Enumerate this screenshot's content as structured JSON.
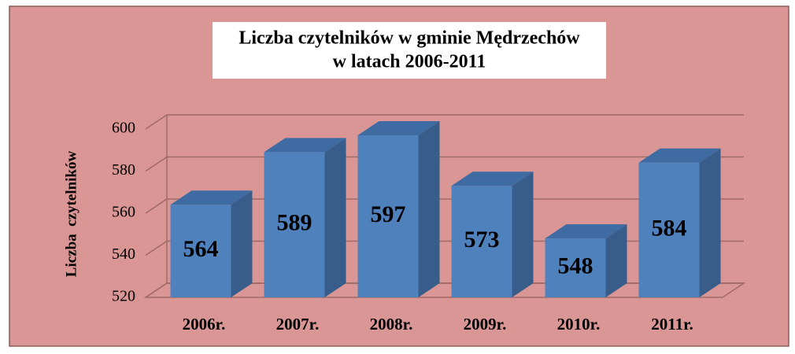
{
  "chart_data": {
    "type": "bar3d",
    "title": [
      "Liczba czytelników w gminie Mędrzechów",
      "w latach 2006-2011"
    ],
    "y_label": "Liczba  czytelników",
    "categories": [
      "2006r.",
      "2007r.",
      "2008r.",
      "2009r.",
      "2010r.",
      "2011r."
    ],
    "values": [
      564,
      589,
      597,
      573,
      548,
      584
    ],
    "color": "#4f81bd",
    "ylim": [
      520,
      600
    ],
    "yticks": [
      520,
      540,
      560,
      580,
      600
    ],
    "grid": true
  }
}
